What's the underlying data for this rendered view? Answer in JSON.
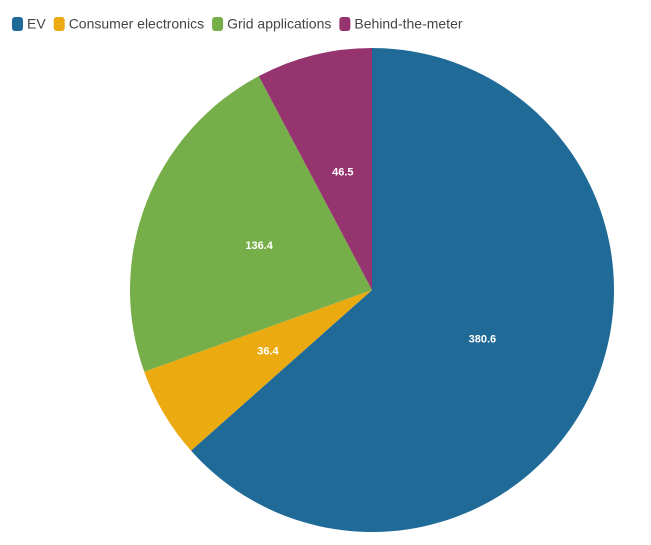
{
  "chart_data": {
    "type": "pie",
    "categories": [
      "EV",
      "Consumer electronics",
      "Grid applications",
      "Behind-the-meter"
    ],
    "values": [
      380.6,
      36.4,
      136.4,
      46.5
    ],
    "colors": [
      "#1f6a97",
      "#ebab10",
      "#76af4a",
      "#963470"
    ],
    "legend": "top-left"
  }
}
